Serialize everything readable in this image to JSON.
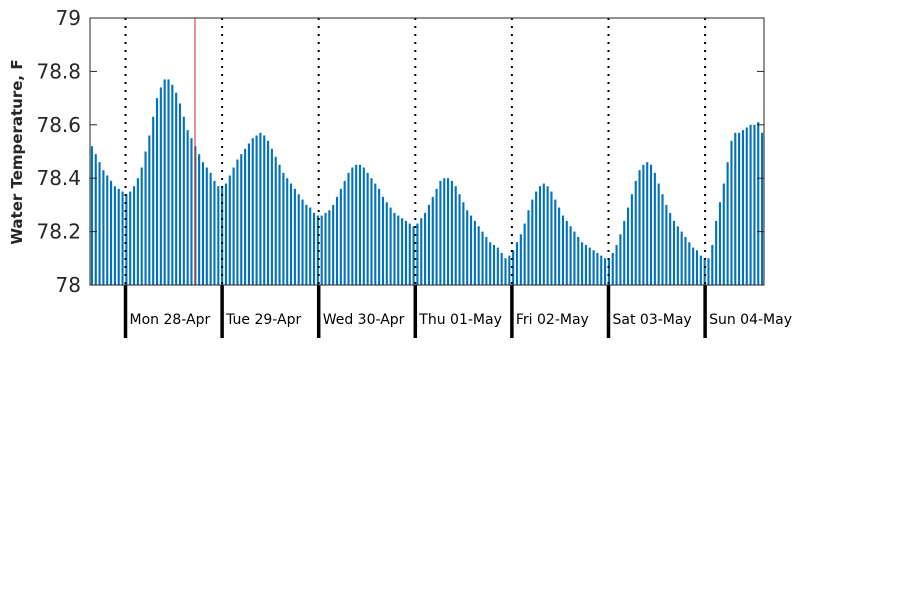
{
  "chart_data": {
    "type": "bar",
    "ylabel": "Water Temperature, F",
    "ylim": [
      78,
      79
    ],
    "yticks": [
      "78",
      "78.2",
      "78.4",
      "78.6",
      "78.8",
      "79"
    ],
    "day_labels": [
      "Mon 28-Apr",
      "Tue 29-Apr",
      "Wed 30-Apr",
      "Thu 01-May",
      "Fri 02-May",
      "Sat 03-May",
      "Sun 04-May"
    ],
    "bar_color": "#0072bd",
    "marker_color": "#d62728",
    "grid": false,
    "series": [
      {
        "values": [
          78.52,
          78.49,
          78.46,
          78.43,
          78.41,
          78.39,
          78.37,
          78.36,
          78.35,
          78.34,
          78.35,
          78.37,
          78.4,
          78.44,
          78.5,
          78.56,
          78.63,
          78.7,
          78.74,
          78.77,
          78.77,
          78.75,
          78.72,
          78.68,
          78.63,
          78.58,
          78.55,
          78.52,
          78.49,
          78.46,
          78.44,
          78.42,
          78.39,
          78.37,
          78.37,
          78.38,
          78.41,
          78.44,
          78.47,
          78.49,
          78.51,
          78.53,
          78.55,
          78.56,
          78.57,
          78.56,
          78.54,
          78.51,
          78.48,
          78.45,
          78.42,
          78.4,
          78.38,
          78.36,
          78.34,
          78.32,
          78.3,
          78.29,
          78.27,
          78.26,
          78.26,
          78.27,
          78.28,
          78.3,
          78.33,
          78.36,
          78.39,
          78.42,
          78.44,
          78.45,
          78.45,
          78.44,
          78.42,
          78.4,
          78.38,
          78.36,
          78.33,
          78.31,
          78.29,
          78.27,
          78.26,
          78.25,
          78.24,
          78.23,
          78.22,
          78.23,
          78.25,
          78.27,
          78.3,
          78.33,
          78.36,
          78.39,
          78.4,
          78.4,
          78.39,
          78.37,
          78.34,
          78.31,
          78.28,
          78.26,
          78.24,
          78.22,
          78.2,
          78.18,
          78.16,
          78.15,
          78.14,
          78.12,
          78.1,
          78.11,
          78.13,
          78.16,
          78.19,
          78.23,
          78.28,
          78.32,
          78.35,
          78.37,
          78.38,
          78.37,
          78.35,
          78.32,
          78.29,
          78.26,
          78.24,
          78.22,
          78.2,
          78.18,
          78.16,
          78.15,
          78.14,
          78.13,
          78.12,
          78.11,
          78.1,
          78.1,
          78.12,
          78.15,
          78.19,
          78.24,
          78.29,
          78.34,
          78.39,
          78.43,
          78.45,
          78.46,
          78.45,
          78.42,
          78.38,
          78.34,
          78.3,
          78.27,
          78.24,
          78.22,
          78.2,
          78.18,
          78.16,
          78.14,
          78.13,
          78.11,
          78.1,
          78.1,
          78.15,
          78.24,
          78.31,
          78.38,
          78.46,
          78.54,
          78.57,
          78.57,
          78.58,
          78.59,
          78.6,
          78.6,
          78.61,
          78.57
        ]
      }
    ]
  }
}
